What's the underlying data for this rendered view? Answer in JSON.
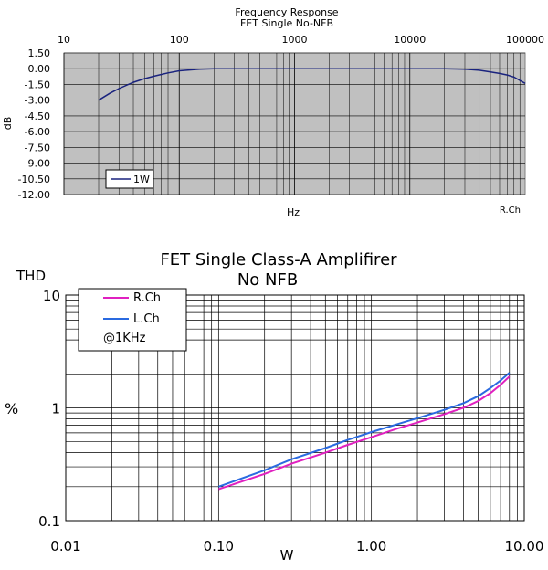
{
  "chart_data": [
    {
      "type": "line",
      "title": "Frequency Response",
      "subtitle": "FET Single No-NFB",
      "xlabel": "Hz",
      "ylabel": "dB",
      "x_scale": "log",
      "xlim": [
        10,
        100000
      ],
      "ylim": [
        -12,
        1.5
      ],
      "x_ticks": [
        "10",
        "100",
        "1000",
        "10000",
        "100000"
      ],
      "y_ticks": [
        "1.50",
        "0.00",
        "-1.50",
        "-3.00",
        "-4.50",
        "-6.00",
        "-7.50",
        "-9.00",
        "-10.50",
        "-12.00"
      ],
      "grid": true,
      "corner_label": "R.Ch",
      "legend_position": "bottom-left",
      "series": [
        {
          "name": "1W",
          "color": "#1a237e",
          "x": [
            20,
            25,
            30,
            40,
            50,
            60,
            70,
            80,
            100,
            150,
            200,
            500,
            1000,
            5000,
            10000,
            20000,
            30000,
            40000,
            50000,
            60000,
            70000,
            80000,
            100000
          ],
          "y": [
            -3.0,
            -2.35,
            -1.9,
            -1.3,
            -0.95,
            -0.72,
            -0.55,
            -0.4,
            -0.2,
            -0.05,
            0.0,
            0.0,
            0.0,
            0.0,
            0.0,
            0.0,
            -0.05,
            -0.15,
            -0.3,
            -0.45,
            -0.6,
            -0.8,
            -1.4
          ]
        }
      ]
    },
    {
      "type": "line",
      "title": "FET Single Class-A Amplifirer",
      "subtitle": "No NFB",
      "xlabel": "W",
      "ylabel": "%",
      "ylabel_top": "THD",
      "x_scale": "log",
      "y_scale": "log",
      "xlim": [
        0.01,
        10
      ],
      "ylim": [
        0.1,
        10
      ],
      "x_ticks": [
        "0.01",
        "0.10",
        "1.00",
        "10.00"
      ],
      "y_ticks": [
        "10",
        "1",
        "0.1"
      ],
      "grid": true,
      "legend_position": "top-left",
      "legend_note": "@1KHz",
      "series": [
        {
          "name": "R.Ch",
          "color": "#e020c0",
          "x": [
            0.1,
            0.2,
            0.3,
            0.5,
            0.7,
            1.0,
            1.5,
            2.0,
            3.0,
            4.0,
            5.0,
            6.0,
            7.0,
            8.0
          ],
          "y": [
            0.19,
            0.26,
            0.32,
            0.4,
            0.47,
            0.55,
            0.66,
            0.74,
            0.88,
            1.0,
            1.15,
            1.35,
            1.6,
            1.9
          ]
        },
        {
          "name": "L.Ch",
          "color": "#2a6ae0",
          "x": [
            0.1,
            0.2,
            0.3,
            0.5,
            0.7,
            1.0,
            1.5,
            2.0,
            3.0,
            4.0,
            5.0,
            6.0,
            7.0,
            8.0
          ],
          "y": [
            0.2,
            0.28,
            0.35,
            0.44,
            0.52,
            0.61,
            0.72,
            0.81,
            0.96,
            1.1,
            1.27,
            1.5,
            1.75,
            2.05
          ]
        }
      ]
    }
  ]
}
